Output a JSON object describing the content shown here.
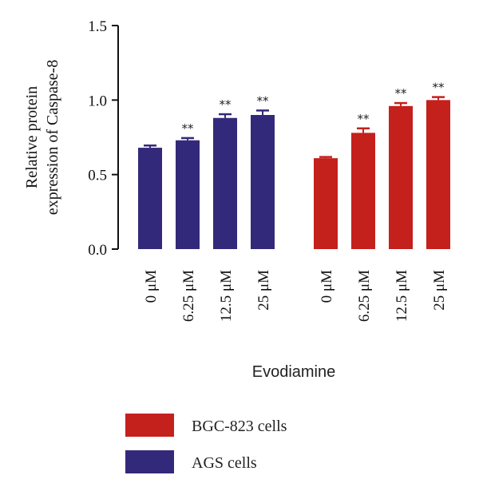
{
  "chart_data": {
    "type": "bar",
    "ylabel": [
      "Relative protein",
      "expression of Caspase-8"
    ],
    "xlabel": "Evodiamine",
    "ylim": [
      0,
      1.5
    ],
    "yticks": [
      {
        "value": 0,
        "label": "0.0"
      },
      {
        "value": 0.5,
        "label": "0.5"
      },
      {
        "value": 1.0,
        "label": "1.0"
      },
      {
        "value": 1.5,
        "label": "1.5"
      }
    ],
    "groups": [
      {
        "name": "AGS cells",
        "color": "#33297a",
        "categories": [
          "0 μM",
          "6.25 μM",
          "12.5 μM",
          "25 μM"
        ],
        "values": [
          0.68,
          0.73,
          0.88,
          0.9
        ],
        "errors": [
          0.015,
          0.015,
          0.025,
          0.03
        ],
        "significance": [
          "",
          "**",
          "**",
          "**"
        ]
      },
      {
        "name": "BGC-823 cells",
        "color": "#c4201c",
        "categories": [
          "0 μM",
          "6.25 μM",
          "12.5 μM",
          "25 μM"
        ],
        "values": [
          0.61,
          0.78,
          0.96,
          1.0
        ],
        "errors": [
          0.008,
          0.03,
          0.02,
          0.02
        ],
        "significance": [
          "",
          "**",
          "**",
          "**"
        ]
      }
    ],
    "legend": {
      "position": "bottom",
      "entries": [
        {
          "label": "BGC-823 cells",
          "color": "#c4201c"
        },
        {
          "label": "AGS cells",
          "color": "#33297a"
        }
      ]
    }
  }
}
